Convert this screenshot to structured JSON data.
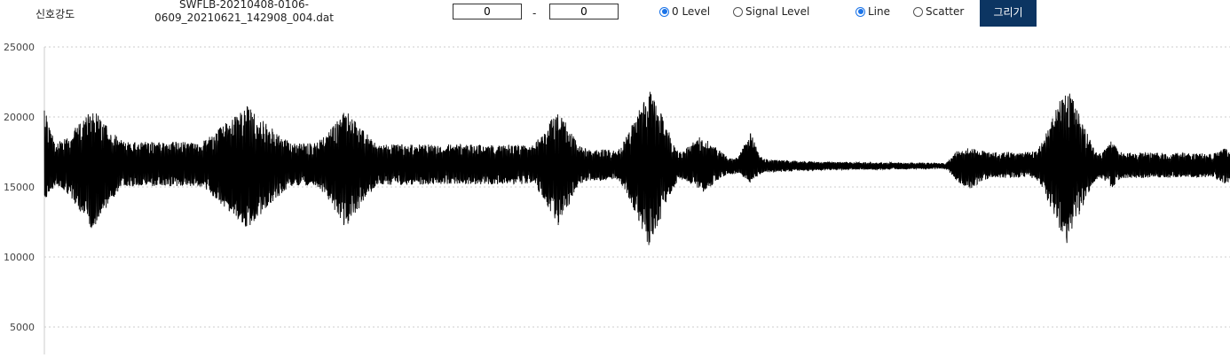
{
  "toolbar": {
    "title": "신호강도",
    "filename_line1": "SWFLB-20210408-0106-",
    "filename_line2": "0609_20210621_142908_004.dat",
    "range_start": "0",
    "range_separator": "-",
    "range_end": "0",
    "level_options": [
      {
        "label": "0 Level",
        "checked": true
      },
      {
        "label": "Signal Level",
        "checked": false
      }
    ],
    "plot_options": [
      {
        "label": "Line",
        "checked": true
      },
      {
        "label": "Scatter",
        "checked": false
      }
    ],
    "draw_button": "그리기",
    "accent_color": "#0c3562",
    "radio_color": "#1a73e8"
  },
  "chart_data": {
    "type": "line",
    "title": "",
    "xlabel": "",
    "ylabel": "",
    "ylim_visible": [
      3000,
      25000
    ],
    "y_ticks": [
      25000,
      20000,
      15000,
      10000,
      5000
    ],
    "grid": "horizontal dotted",
    "baseline": 16500,
    "line_color": "#000000",
    "bursts": [
      {
        "x": 0.0,
        "min": 13800,
        "max": 20700,
        "width": 0.004
      },
      {
        "x": 0.04,
        "min": 11900,
        "max": 20700,
        "width": 0.012
      },
      {
        "x": 0.17,
        "min": 11900,
        "max": 20900,
        "width": 0.018
      },
      {
        "x": 0.255,
        "min": 11900,
        "max": 20600,
        "width": 0.012
      },
      {
        "x": 0.433,
        "min": 12200,
        "max": 20600,
        "width": 0.01
      },
      {
        "x": 0.51,
        "min": 10600,
        "max": 22400,
        "width": 0.012
      },
      {
        "x": 0.555,
        "min": 14600,
        "max": 18800,
        "width": 0.01
      },
      {
        "x": 0.595,
        "min": 15300,
        "max": 19000,
        "width": 0.005
      },
      {
        "x": 0.78,
        "min": 14800,
        "max": 17800,
        "width": 0.008
      },
      {
        "x": 0.862,
        "min": 10800,
        "max": 22500,
        "width": 0.012
      },
      {
        "x": 0.9,
        "min": 14900,
        "max": 18300,
        "width": 0.004
      },
      {
        "x": 0.995,
        "min": 15100,
        "max": 17800,
        "width": 0.004
      }
    ],
    "envelope": [
      {
        "x": 0.0,
        "lo": 15000,
        "hi": 18300
      },
      {
        "x": 0.4,
        "lo": 15200,
        "hi": 18000
      },
      {
        "x": 0.53,
        "lo": 15700,
        "hi": 17400
      },
      {
        "x": 0.6,
        "lo": 16000,
        "hi": 17000
      },
      {
        "x": 0.65,
        "lo": 16200,
        "hi": 16800
      },
      {
        "x": 0.76,
        "lo": 16300,
        "hi": 16700
      },
      {
        "x": 0.77,
        "lo": 15700,
        "hi": 17500
      },
      {
        "x": 0.86,
        "lo": 15600,
        "hi": 17500
      },
      {
        "x": 1.0,
        "lo": 15700,
        "hi": 17400
      }
    ]
  }
}
